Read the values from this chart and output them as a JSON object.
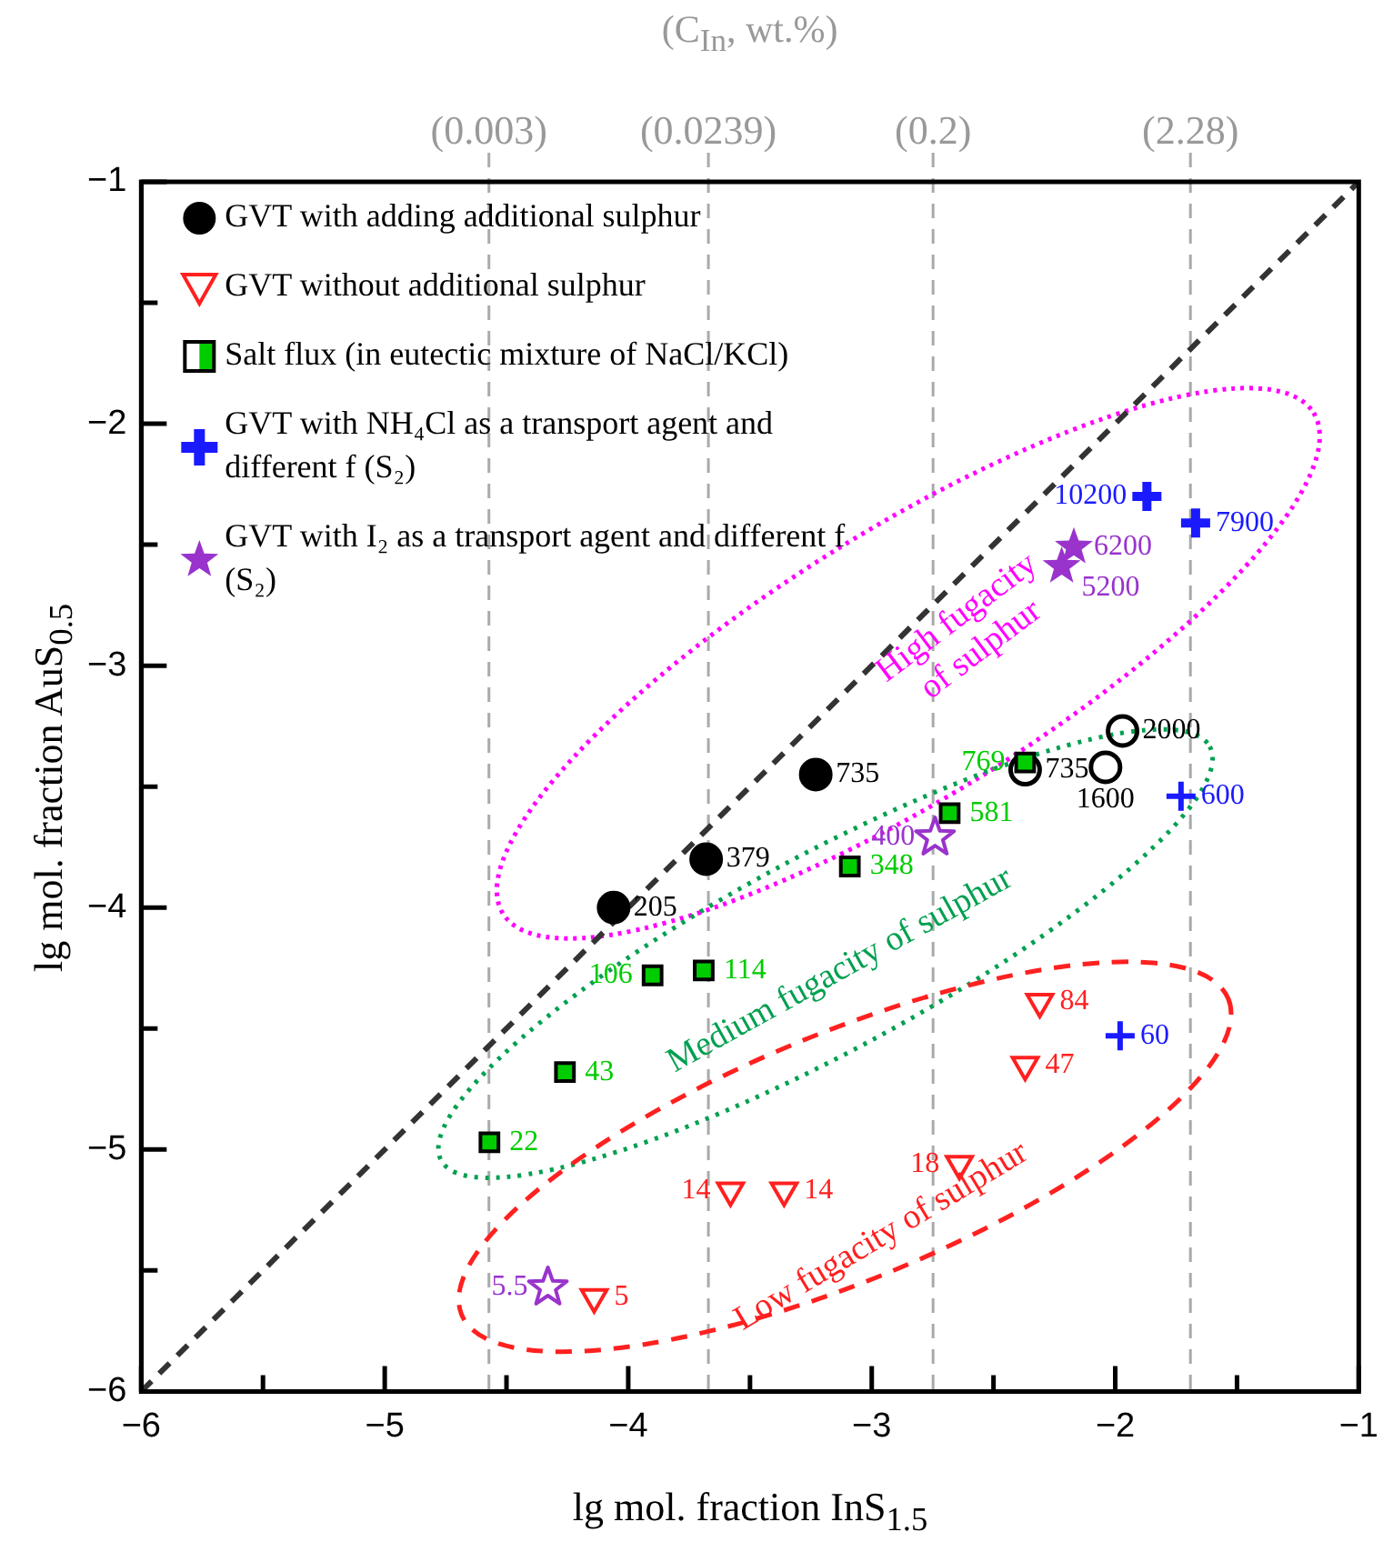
{
  "chart_data": {
    "type": "scatter",
    "xlabel": "lg mol. fraction  InS$_{1.5}$",
    "ylabel": "lg mol. fraction  AuS$_{0.5}$",
    "x2label": "(C$_{In}$, wt.%)",
    "xlim": [
      -6,
      -1
    ],
    "ylim": [
      -6,
      -1
    ],
    "xticks": [
      {
        "value": -6,
        "label": "−6"
      },
      {
        "value": -5.5,
        "label": null
      },
      {
        "value": -5,
        "label": "−5"
      },
      {
        "value": -4.5,
        "label": null
      },
      {
        "value": -4,
        "label": "−4"
      },
      {
        "value": -3.5,
        "label": null
      },
      {
        "value": -3,
        "label": "−3"
      },
      {
        "value": -2.5,
        "label": null
      },
      {
        "value": -2,
        "label": "−2"
      },
      {
        "value": -1.5,
        "label": null
      },
      {
        "value": -1,
        "label": "−1"
      }
    ],
    "yticks": [
      {
        "value": -6,
        "label": "−6"
      },
      {
        "value": -5.5,
        "label": null
      },
      {
        "value": -5,
        "label": "−5"
      },
      {
        "value": -4.5,
        "label": null
      },
      {
        "value": -4,
        "label": "−4"
      },
      {
        "value": -3.5,
        "label": null
      },
      {
        "value": -3,
        "label": "−3"
      },
      {
        "value": -2.5,
        "label": null
      },
      {
        "value": -2,
        "label": "−2"
      },
      {
        "value": -1.5,
        "label": null
      },
      {
        "value": -1,
        "label": "−1"
      }
    ],
    "x2lim": [
      0.000112,
      11.2
    ],
    "log": "x2",
    "x2ticks": [
      {
        "value": 0.003,
        "label": "(0.003)"
      },
      {
        "value": 0.0239,
        "label": "(0.0239)"
      },
      {
        "value": 0.2,
        "label": "(0.2)"
      },
      {
        "value": 2.28,
        "label": "(2.28)"
      }
    ],
    "grid": false,
    "legend": "top left",
    "ref_lines": [
      {
        "axis": "x2",
        "value": 0.003,
        "color": "#aaaaaa",
        "line_style": "dashed"
      },
      {
        "axis": "x2",
        "value": 0.0239,
        "color": "#aaaaaa",
        "line_style": "dashed"
      },
      {
        "axis": "x2",
        "value": 0.2,
        "color": "#aaaaaa",
        "line_style": "dashed"
      },
      {
        "axis": "x2",
        "value": 2.28,
        "color": "#aaaaaa",
        "line_style": "dashed"
      }
    ],
    "annotations": [
      "High fugacity\nof sulphur",
      "Medium fugacity of sulphur",
      "Low fugacity of sulphur",
      {
        "text": "205",
        "x": -4.06,
        "y": -4.0
      },
      {
        "text": "379",
        "x": -3.68,
        "y": -3.8
      },
      {
        "text": "735",
        "x": -3.23,
        "y": -3.45
      },
      {
        "text": "735",
        "x": -2.37,
        "y": -3.43
      },
      {
        "text": "1600",
        "x": -2.04,
        "y": -3.42
      },
      {
        "text": "2000",
        "x": -1.97,
        "y": -3.27
      },
      {
        "text": "5",
        "x": -4.14,
        "y": -5.61
      },
      {
        "text": "14",
        "x": -3.58,
        "y": -5.17
      },
      {
        "text": "14",
        "x": -3.36,
        "y": -5.17
      },
      {
        "text": "18",
        "x": -2.64,
        "y": -5.06
      },
      {
        "text": "47",
        "x": -2.37,
        "y": -4.65
      },
      {
        "text": "84",
        "x": -2.31,
        "y": -4.39
      },
      {
        "text": "22",
        "x": -4.57,
        "y": -4.97
      },
      {
        "text": "43",
        "x": -4.26,
        "y": -4.68
      },
      {
        "text": "106",
        "x": -3.9,
        "y": -4.28
      },
      {
        "text": "114",
        "x": -3.69,
        "y": -4.26
      },
      {
        "text": "348",
        "x": -3.09,
        "y": -3.83
      },
      {
        "text": "581",
        "x": -2.68,
        "y": -3.61
      },
      {
        "text": "769",
        "x": -2.37,
        "y": -3.4
      },
      {
        "text": "10200",
        "x": -1.87,
        "y": -2.3
      },
      {
        "text": "7900",
        "x": -1.67,
        "y": -2.41
      },
      {
        "text": "60",
        "x": -1.98,
        "y": -4.53
      },
      {
        "text": "600",
        "x": -1.73,
        "y": -3.54
      },
      {
        "text": "5200",
        "x": -2.22,
        "y": -2.59
      },
      {
        "text": "6200",
        "x": -2.17,
        "y": -2.51
      },
      {
        "text": "5.5",
        "x": -4.33,
        "y": -5.57
      },
      {
        "text": "400",
        "x": -2.74,
        "y": -3.71
      }
    ],
    "series": [
      {
        "type": "line",
        "color": "#333333",
        "line_style": "dashed",
        "marker": "none",
        "x": [
          -6,
          -1
        ],
        "values": [
          -6,
          -1
        ]
      },
      {
        "name": "GVT with adding additional sulphur",
        "color": "#000000",
        "marker": "circle",
        "x": [
          -4.06,
          -3.68,
          -3.23
        ],
        "values": [
          -4.0,
          -3.8,
          -3.45
        ]
      },
      {
        "color": "#000000",
        "marker": "circle",
        "x": [
          -2.37,
          -2.04,
          -1.97
        ],
        "values": [
          -3.43,
          -3.42,
          -3.27
        ]
      },
      {
        "name": "GVT without additional sulphur",
        "color": "#ff2020",
        "marker": "triangle",
        "x": [
          -4.14,
          -3.58,
          -3.36,
          -2.64,
          -2.37,
          -2.31
        ],
        "values": [
          -5.61,
          -5.17,
          -5.17,
          -5.06,
          -4.65,
          -4.39
        ]
      },
      {
        "name": "Salt flux (in eutectic mixture of NaCl/KCl)",
        "color": "#00cc00",
        "marker": "square",
        "x": [
          -4.57,
          -4.26,
          -3.9,
          -3.69,
          -3.09,
          -2.68,
          -2.37
        ],
        "values": [
          -4.97,
          -4.68,
          -4.28,
          -4.26,
          -3.83,
          -3.61,
          -3.4
        ]
      },
      {
        "name": "GVT with NH₄Cl as a transport agent and different f (S₂)",
        "color": "#1a1aff",
        "marker": "cross",
        "x": [
          -1.87,
          -1.67
        ],
        "values": [
          -2.3,
          -2.41
        ]
      },
      {
        "color": "#1a1aff",
        "marker": "cross",
        "x": [
          -1.98,
          -1.73
        ],
        "values": [
          -4.53,
          -3.54
        ]
      },
      {
        "name": "GVT with I₂ as a transport agent and different f (S₂)",
        "color": "#9933cc",
        "marker": "star",
        "x": [
          -2.22,
          -2.17
        ],
        "values": [
          -2.59,
          -2.51
        ]
      },
      {
        "color": "#9933cc",
        "marker": "star",
        "x": [
          -4.33,
          -2.74
        ],
        "values": [
          -5.57,
          -3.71
        ]
      }
    ]
  }
}
